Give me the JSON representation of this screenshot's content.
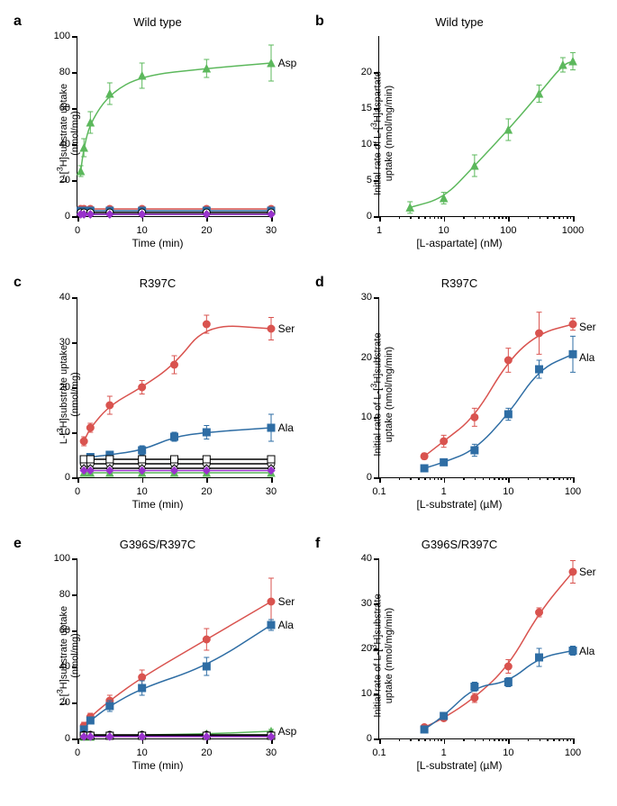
{
  "colors": {
    "green": "#5cb85c",
    "red": "#d9534f",
    "blue": "#2e6da4",
    "black": "#000000",
    "magenta": "#9933cc",
    "white": "#ffffff"
  },
  "panels": {
    "a": {
      "label": "a",
      "title": "Wild type",
      "ylabel": "L-[³H]substrate uptake\n(nmol/mg)",
      "xlabel": "Time (min)",
      "x_type": "linear",
      "xlim": [
        0,
        30
      ],
      "ylim": [
        0,
        100
      ],
      "xticks": [
        0,
        10,
        20,
        30
      ],
      "yticks": [
        0,
        20,
        40,
        60,
        80,
        100
      ],
      "series": [
        {
          "name": "Asp",
          "color": "green",
          "marker": "triangle",
          "fill": true,
          "x": [
            0.5,
            1,
            2,
            5,
            10,
            20,
            30
          ],
          "y": [
            25,
            38,
            52,
            68,
            78,
            82,
            85
          ],
          "err": [
            3,
            5,
            6,
            6,
            7,
            5,
            10
          ],
          "label_pos": [
            30.5,
            85
          ]
        },
        {
          "name": "red",
          "color": "red",
          "marker": "circle",
          "fill": true,
          "x": [
            0.5,
            1,
            2,
            5,
            10,
            20,
            30
          ],
          "y": [
            4,
            4,
            4,
            4,
            4,
            4,
            4
          ],
          "err": [
            0,
            0,
            0,
            0,
            0,
            0,
            0
          ]
        },
        {
          "name": "blue",
          "color": "blue",
          "marker": "square",
          "fill": true,
          "x": [
            0.5,
            1,
            2,
            5,
            10,
            20,
            30
          ],
          "y": [
            3,
            3,
            3,
            3,
            3,
            3,
            3
          ],
          "err": [
            0,
            0,
            0,
            0,
            0,
            0,
            0
          ]
        },
        {
          "name": "black-o",
          "color": "black",
          "marker": "circle",
          "fill": false,
          "x": [
            0.5,
            1,
            2,
            5,
            10,
            20,
            30
          ],
          "y": [
            2,
            2,
            2,
            2,
            2,
            2,
            2
          ],
          "err": [
            0,
            0,
            0,
            0,
            0,
            0,
            0
          ]
        },
        {
          "name": "black-d",
          "color": "black",
          "marker": "diamond",
          "fill": false,
          "x": [
            0.5,
            1,
            2,
            5,
            10,
            20,
            30
          ],
          "y": [
            1,
            1,
            1,
            1,
            1,
            1,
            1
          ],
          "err": [
            0,
            0,
            0,
            0,
            0,
            0,
            0
          ]
        },
        {
          "name": "magenta",
          "color": "magenta",
          "marker": "diamond",
          "fill": true,
          "x": [
            0.5,
            1,
            2,
            5,
            10,
            20,
            30
          ],
          "y": [
            1,
            1,
            1,
            1,
            1,
            1,
            1
          ],
          "err": [
            0,
            0,
            0,
            0,
            0,
            0,
            0
          ]
        }
      ]
    },
    "b": {
      "label": "b",
      "title": "Wild type",
      "ylabel": "Initial rate of L-[³H]aspartate\nuptake (nmol/mg/min)",
      "xlabel": "[L-aspartate] (nM)",
      "x_type": "log",
      "xlim": [
        1,
        1000
      ],
      "ylim": [
        0,
        25
      ],
      "xticks": [
        1,
        10,
        100,
        1000
      ],
      "yticks": [
        0,
        5,
        10,
        15,
        20
      ],
      "series": [
        {
          "name": "Asp",
          "color": "green",
          "marker": "triangle",
          "fill": true,
          "x": [
            3,
            10,
            30,
            100,
            300,
            700,
            1000
          ],
          "y": [
            1.2,
            2.5,
            7,
            12,
            17,
            21,
            21.5
          ],
          "err": [
            0.8,
            0.8,
            1.5,
            1.5,
            1.2,
            1,
            1.2
          ]
        }
      ]
    },
    "c": {
      "label": "c",
      "title": "R397C",
      "ylabel": "L-[³H]substrate uptake\n(nmol/mg)",
      "xlabel": "Time (min)",
      "x_type": "linear",
      "xlim": [
        0,
        30
      ],
      "ylim": [
        0,
        40
      ],
      "xticks": [
        0,
        10,
        20,
        30
      ],
      "yticks": [
        0,
        10,
        20,
        30,
        40
      ],
      "series": [
        {
          "name": "Ser",
          "color": "red",
          "marker": "circle",
          "fill": true,
          "x": [
            1,
            2,
            5,
            10,
            15,
            20,
            30
          ],
          "y": [
            8,
            11,
            16,
            20,
            25,
            34,
            33
          ],
          "err": [
            1,
            1,
            2,
            1.5,
            2,
            2,
            2.5
          ],
          "label_pos": [
            30.5,
            33
          ]
        },
        {
          "name": "Ala",
          "color": "blue",
          "marker": "square",
          "fill": true,
          "x": [
            1,
            2,
            5,
            10,
            15,
            20,
            30
          ],
          "y": [
            4,
            4.5,
            5,
            6,
            9,
            10,
            11
          ],
          "err": [
            0.5,
            0.5,
            0.5,
            1,
            1,
            1.5,
            3
          ],
          "label_pos": [
            30.5,
            11
          ]
        },
        {
          "name": "green",
          "color": "green",
          "marker": "triangle",
          "fill": true,
          "x": [
            1,
            2,
            5,
            10,
            15,
            20,
            30
          ],
          "y": [
            1,
            1,
            1,
            1,
            1,
            1,
            1
          ],
          "err": [
            0,
            0,
            0,
            0,
            0,
            0,
            0
          ]
        },
        {
          "name": "black-o",
          "color": "black",
          "marker": "circle",
          "fill": false,
          "x": [
            1,
            2,
            5,
            10,
            15,
            20,
            30
          ],
          "y": [
            3,
            3,
            3,
            3,
            3,
            3,
            3
          ],
          "err": [
            0,
            0,
            0,
            0,
            0,
            0,
            0
          ]
        },
        {
          "name": "black-sq",
          "color": "black",
          "marker": "square",
          "fill": false,
          "x": [
            1,
            2,
            5,
            10,
            15,
            20,
            30
          ],
          "y": [
            4,
            4,
            4,
            4,
            4,
            4,
            4
          ],
          "err": [
            0,
            0,
            0,
            0,
            0,
            0,
            0
          ]
        },
        {
          "name": "black-d",
          "color": "black",
          "marker": "diamond",
          "fill": false,
          "x": [
            1,
            2,
            5,
            10,
            15,
            20,
            30
          ],
          "y": [
            2,
            2,
            2,
            2,
            2,
            2,
            2
          ],
          "err": [
            0,
            0,
            0,
            0,
            0,
            0,
            0
          ]
        },
        {
          "name": "magenta",
          "color": "magenta",
          "marker": "diamond",
          "fill": true,
          "x": [
            1,
            2,
            5,
            10,
            15,
            20,
            30
          ],
          "y": [
            1.5,
            1.5,
            1.5,
            1.5,
            1.5,
            1.5,
            1.5
          ],
          "err": [
            0,
            0,
            0,
            0,
            0,
            0,
            0
          ]
        }
      ]
    },
    "d": {
      "label": "d",
      "title": "R397C",
      "ylabel": "Initial rate of L-[³H]substrate\nuptake (nmol/mg/min)",
      "xlabel": "[L-substrate] (µM)",
      "x_type": "log",
      "xlim": [
        0.1,
        100
      ],
      "ylim": [
        0,
        30
      ],
      "xticks": [
        0.1,
        1,
        10,
        100
      ],
      "yticks": [
        0,
        10,
        20,
        30
      ],
      "series": [
        {
          "name": "Ser",
          "color": "red",
          "marker": "circle",
          "fill": true,
          "x": [
            0.5,
            1,
            3,
            10,
            30,
            100
          ],
          "y": [
            3.5,
            6,
            10,
            19.5,
            24,
            25.5
          ],
          "err": [
            0.5,
            1,
            1.5,
            2,
            3.5,
            1
          ],
          "label_pos": [
            110,
            25
          ]
        },
        {
          "name": "Ala",
          "color": "blue",
          "marker": "square",
          "fill": true,
          "x": [
            0.5,
            1,
            3,
            10,
            30,
            100
          ],
          "y": [
            1.5,
            2.5,
            4.5,
            10.5,
            18,
            20.5
          ],
          "err": [
            0.5,
            0.5,
            1,
            1,
            1.5,
            3
          ],
          "label_pos": [
            110,
            20
          ]
        }
      ]
    },
    "e": {
      "label": "e",
      "title": "G396S/R397C",
      "ylabel": "L-[³H]substrate uptake\n(nmol/mg)",
      "xlabel": "Time (min)",
      "x_type": "linear",
      "xlim": [
        0,
        30
      ],
      "ylim": [
        0,
        100
      ],
      "xticks": [
        0,
        10,
        20,
        30
      ],
      "yticks": [
        0,
        20,
        40,
        60,
        80,
        100
      ],
      "series": [
        {
          "name": "Ser",
          "color": "red",
          "marker": "circle",
          "fill": true,
          "x": [
            1,
            2,
            5,
            10,
            20,
            30
          ],
          "y": [
            7,
            12,
            21,
            34,
            55,
            76
          ],
          "err": [
            2,
            2,
            3,
            4,
            6,
            13
          ],
          "label_pos": [
            30.5,
            76
          ]
        },
        {
          "name": "Ala",
          "color": "blue",
          "marker": "square",
          "fill": true,
          "x": [
            1,
            2,
            5,
            10,
            20,
            30
          ],
          "y": [
            5,
            10,
            18,
            28,
            40,
            63
          ],
          "err": [
            1,
            2,
            3,
            4,
            5,
            3
          ],
          "label_pos": [
            30.5,
            63
          ]
        },
        {
          "name": "Asp",
          "color": "green",
          "marker": "triangle",
          "fill": true,
          "x": [
            1,
            2,
            5,
            10,
            20,
            30
          ],
          "y": [
            1,
            1,
            1.5,
            2,
            2.5,
            4
          ],
          "err": [
            0.5,
            0.5,
            0.5,
            0.5,
            1,
            1
          ],
          "label_pos": [
            30.5,
            4
          ]
        },
        {
          "name": "black-o",
          "color": "black",
          "marker": "circle",
          "fill": false,
          "x": [
            1,
            2,
            5,
            10,
            20,
            30
          ],
          "y": [
            2,
            2,
            2,
            2,
            2,
            2
          ],
          "err": [
            0,
            0,
            0,
            0,
            0,
            0
          ]
        },
        {
          "name": "black-sq",
          "color": "black",
          "marker": "square",
          "fill": false,
          "x": [
            1,
            2,
            5,
            10,
            20,
            30
          ],
          "y": [
            1.5,
            1.5,
            1.5,
            1.5,
            1.5,
            1.5
          ],
          "err": [
            0,
            0,
            0,
            0,
            0,
            0
          ]
        },
        {
          "name": "magenta",
          "color": "magenta",
          "marker": "diamond",
          "fill": true,
          "x": [
            1,
            2,
            5,
            10,
            20,
            30
          ],
          "y": [
            1,
            1,
            1,
            1,
            1,
            1
          ],
          "err": [
            0,
            0,
            0,
            0,
            0,
            0
          ]
        }
      ]
    },
    "f": {
      "label": "f",
      "title": "G396S/R397C",
      "ylabel": "Initial rate of L-[³H]substrate\nuptake (nmol/mg/min)",
      "xlabel": "[L-substrate] (µM)",
      "x_type": "log",
      "xlim": [
        0.1,
        100
      ],
      "ylim": [
        0,
        40
      ],
      "xticks": [
        0.1,
        1,
        10,
        100
      ],
      "yticks": [
        0,
        10,
        20,
        30,
        40
      ],
      "series": [
        {
          "name": "Ser",
          "color": "red",
          "marker": "circle",
          "fill": true,
          "x": [
            0.5,
            1,
            3,
            10,
            30,
            100
          ],
          "y": [
            2.5,
            4.5,
            9,
            16,
            28,
            37
          ],
          "err": [
            0.5,
            0.5,
            1,
            1.5,
            1,
            2.5
          ],
          "label_pos": [
            110,
            37
          ]
        },
        {
          "name": "Ala",
          "color": "blue",
          "marker": "square",
          "fill": true,
          "x": [
            0.5,
            1,
            3,
            10,
            30,
            100
          ],
          "y": [
            2,
            5,
            11.5,
            12.5,
            18,
            19.5
          ],
          "err": [
            0.5,
            0.5,
            1,
            1,
            2,
            1
          ],
          "label_pos": [
            110,
            19.5
          ]
        }
      ]
    }
  }
}
